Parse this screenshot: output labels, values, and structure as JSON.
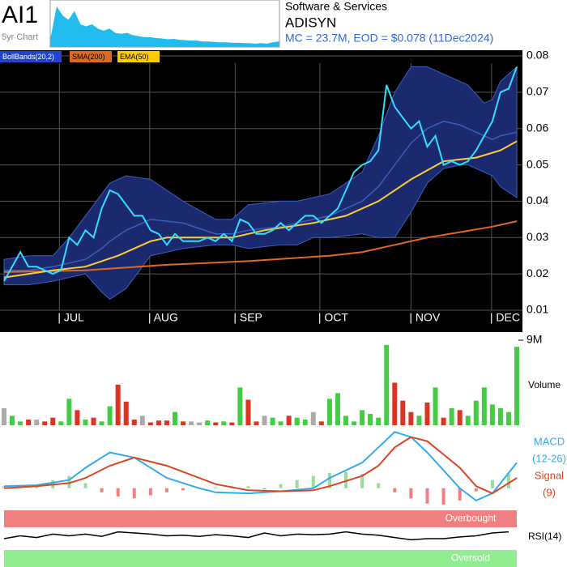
{
  "header": {
    "ticker": "AI1",
    "mini_label": "5yr Chart",
    "sector": "Software & Services",
    "company": "ADISYN",
    "summary": "MC = 23.7M, EOD = $0.078 (11Dec2024)"
  },
  "chart_data": [
    {
      "type": "line",
      "color": "#33ddff",
      "values": [
        0.018,
        0.022,
        0.026,
        0.022,
        0.022,
        0.021,
        0.02,
        0.021,
        0.03,
        0.028,
        0.032,
        0.03,
        0.038,
        0.043,
        0.042,
        0.039,
        0.036,
        0.036,
        0.032,
        0.031,
        0.028,
        0.031,
        0.029,
        0.029,
        0.029,
        0.03,
        0.029,
        0.031,
        0.029,
        0.035,
        0.034,
        0.031,
        0.031,
        0.032,
        0.034,
        0.032,
        0.034,
        0.036,
        0.036,
        0.034,
        0.036,
        0.038,
        0.043,
        0.048,
        0.05,
        0.051,
        0.054,
        0.072,
        0.066,
        0.063,
        0.06,
        0.062,
        0.055,
        0.058,
        0.05,
        0.051,
        0.05,
        0.051,
        0.054,
        0.058,
        0.062,
        0.07,
        0.071,
        0.077
      ],
      "series": [
        {
          "name": "BollBands(20,2)",
          "type": "band",
          "color": "#3a5fbf",
          "fill": "#1b2a6e",
          "legend_color": "#2244cc",
          "legend_text": "#ffffff",
          "x": [
            0,
            3,
            6,
            8,
            10,
            12,
            13,
            15,
            18,
            22,
            26,
            28,
            30,
            34,
            36,
            38,
            40,
            44,
            46,
            48,
            50,
            52,
            54,
            56,
            57,
            59,
            60,
            61,
            63
          ],
          "upper": [
            0.024,
            0.025,
            0.025,
            0.03,
            0.036,
            0.042,
            0.045,
            0.047,
            0.046,
            0.04,
            0.035,
            0.035,
            0.039,
            0.04,
            0.04,
            0.041,
            0.042,
            0.048,
            0.058,
            0.07,
            0.077,
            0.077,
            0.075,
            0.073,
            0.072,
            0.067,
            0.068,
            0.073,
            0.077
          ],
          "lower": [
            0.017,
            0.017,
            0.018,
            0.019,
            0.02,
            0.015,
            0.013,
            0.016,
            0.025,
            0.027,
            0.028,
            0.028,
            0.027,
            0.028,
            0.028,
            0.03,
            0.03,
            0.031,
            0.03,
            0.03,
            0.037,
            0.045,
            0.049,
            0.05,
            0.05,
            0.048,
            0.047,
            0.044,
            0.041
          ],
          "values": [
            0.021,
            0.021,
            0.022,
            0.023,
            0.024,
            0.027,
            0.029,
            0.032,
            0.035,
            0.034,
            0.031,
            0.031,
            0.032,
            0.033,
            0.034,
            0.035,
            0.036,
            0.04,
            0.044,
            0.05,
            0.056,
            0.06,
            0.062,
            0.061,
            0.06,
            0.058,
            0.057,
            0.058,
            0.059
          ]
        },
        {
          "name": "SMA(200)",
          "type": "line",
          "color": "#dd6a1e",
          "legend_color": "#dd6a1e",
          "legend_text": "#000000",
          "x": [
            0,
            10,
            20,
            30,
            40,
            44,
            48,
            52,
            56,
            60,
            63
          ],
          "values": [
            0.0205,
            0.021,
            0.0225,
            0.0235,
            0.025,
            0.026,
            0.028,
            0.03,
            0.0315,
            0.033,
            0.0345
          ]
        },
        {
          "name": "EMA(50)",
          "type": "line",
          "color": "#ffcc33",
          "legend_color": "#ffcc00",
          "legend_text": "#000000",
          "x": [
            0,
            6,
            10,
            14,
            18,
            20,
            24,
            28,
            32,
            38,
            42,
            46,
            50,
            54,
            58,
            61,
            63
          ],
          "values": [
            0.019,
            0.021,
            0.022,
            0.025,
            0.029,
            0.03,
            0.03,
            0.03,
            0.032,
            0.034,
            0.036,
            0.04,
            0.046,
            0.051,
            0.052,
            0.054,
            0.0565
          ]
        }
      ],
      "xlim": [
        0,
        63
      ],
      "xticks": [
        {
          "value": 6.8,
          "label": "| JUL"
        },
        {
          "value": 17.9,
          "label": "| AUG"
        },
        {
          "value": 28.4,
          "label": "| SEP"
        },
        {
          "value": 38.8,
          "label": "| OCT"
        },
        {
          "value": 50.0,
          "label": "| NOV"
        },
        {
          "value": 59.9,
          "label": "| DEC"
        }
      ],
      "ylim": [
        0.01,
        0.08
      ],
      "yticks": [
        0.01,
        0.02,
        0.03,
        0.04,
        0.05,
        0.06,
        0.07,
        0.08
      ],
      "grid": true
    },
    {
      "type": "bar",
      "ylabel": "Volume",
      "up_color": "#44cc44",
      "down_color": "#dd3322",
      "flat_color": "#aaaaaa",
      "values": [
        1.8,
        1.0,
        0.4,
        0.6,
        0.6,
        0.4,
        0.8,
        0.4,
        2.8,
        1.6,
        0.6,
        0.8,
        0.4,
        2.0,
        4.3,
        2.5,
        0.6,
        1.0,
        0.3,
        0.5,
        0.5,
        1.4,
        0.4,
        0.4,
        0.3,
        0.5,
        0.3,
        0.4,
        0.3,
        4.0,
        2.7,
        0.4,
        1.0,
        0.8,
        0.4,
        1.0,
        0.8,
        0.6,
        1.4,
        0.4,
        2.8,
        3.4,
        1.0,
        0.4,
        1.6,
        1.2,
        0.8,
        8.5,
        4.5,
        2.6,
        1.4,
        1.0,
        2.4,
        4.0,
        0.8,
        1.8,
        1.6,
        1.0,
        2.6,
        4.0,
        2.2,
        1.8,
        1.4,
        8.3
      ],
      "xlim": [
        0,
        63
      ],
      "ylim": [
        0,
        9
      ],
      "yticks": [
        {
          "value": 9,
          "label": "9M"
        }
      ]
    },
    {
      "type": "macd",
      "series": [
        {
          "name": "MACD",
          "params": "(12-26)",
          "color": "#33aaee",
          "x": [
            0,
            4,
            8,
            10,
            13,
            16,
            20,
            24,
            26,
            30,
            34,
            38,
            40,
            44,
            46,
            48,
            50,
            52,
            56,
            58,
            60,
            63
          ],
          "values": [
            0.0002,
            0.0003,
            0.0008,
            0.002,
            0.0035,
            0.003,
            0.001,
            0.0,
            -0.0004,
            -0.0005,
            -0.0003,
            0.0,
            0.001,
            0.0025,
            0.004,
            0.0055,
            0.005,
            0.0035,
            0.0,
            -0.0012,
            -0.0005,
            0.0025
          ]
        },
        {
          "name": "Signal",
          "params": "(9)",
          "color": "#dd4422",
          "x": [
            0,
            4,
            8,
            10,
            13,
            16,
            20,
            24,
            26,
            30,
            34,
            38,
            40,
            44,
            46,
            48,
            50,
            52,
            56,
            58,
            60,
            63
          ],
          "values": [
            0.0,
            0.0002,
            0.0005,
            0.001,
            0.0022,
            0.003,
            0.0022,
            0.001,
            0.0004,
            -0.0002,
            -0.0003,
            -0.0002,
            0.0002,
            0.0012,
            0.0022,
            0.004,
            0.005,
            0.0046,
            0.002,
            0.0002,
            -0.0005,
            0.001
          ]
        }
      ],
      "histogram": {
        "pos_color": "#99dd99",
        "neg_color": "#f08080",
        "x": [
          0,
          2,
          4,
          6,
          8,
          10,
          12,
          14,
          16,
          18,
          20,
          22,
          24,
          26,
          28,
          30,
          32,
          34,
          36,
          38,
          40,
          42,
          44,
          46,
          48,
          50,
          52,
          54,
          56,
          58,
          60,
          62
        ],
        "values": [
          0.0002,
          0.0001,
          0.0003,
          0.0008,
          0.0012,
          0.0005,
          -0.0004,
          -0.0008,
          -0.001,
          -0.0007,
          -0.0004,
          -0.0002,
          0.0,
          0.0001,
          0.0002,
          0.0002,
          -0.0001,
          0.0004,
          0.0008,
          0.0012,
          0.0015,
          0.0016,
          0.0014,
          0.0005,
          -0.0004,
          -0.001,
          -0.0015,
          -0.0016,
          -0.0012,
          -0.0003,
          0.0008,
          0.0014
        ]
      },
      "xlim": [
        0,
        63
      ],
      "ylim": [
        -0.002,
        0.006
      ]
    },
    {
      "type": "rsi",
      "name": "RSI(14)",
      "color": "#000000",
      "x": [
        0,
        2,
        4,
        6,
        8,
        10,
        12,
        14,
        16,
        18,
        20,
        22,
        24,
        26,
        28,
        30,
        32,
        34,
        36,
        38,
        40,
        42,
        44,
        46,
        48,
        50,
        52,
        54,
        56,
        58,
        60,
        62
      ],
      "values": [
        50,
        55,
        52,
        58,
        55,
        58,
        54,
        62,
        60,
        58,
        55,
        56,
        54,
        57,
        55,
        52,
        60,
        55,
        58,
        57,
        58,
        62,
        58,
        56,
        52,
        48,
        50,
        50,
        53,
        55,
        60,
        62
      ],
      "bands": [
        {
          "label": "Overbought",
          "from": 70,
          "to": 100,
          "color": "#f08080"
        },
        {
          "label": "Oversold",
          "from": 0,
          "to": 30,
          "color": "#90ee90"
        }
      ],
      "xlim": [
        0,
        63
      ],
      "ylim": [
        0,
        100
      ]
    },
    {
      "type": "area",
      "color": "#22bbee",
      "values": [
        0.2,
        0.9,
        0.7,
        0.6,
        0.8,
        0.5,
        0.45,
        0.5,
        0.4,
        0.35,
        0.4,
        0.3,
        0.28,
        0.3,
        0.25,
        0.22,
        0.2,
        0.2,
        0.18,
        0.17,
        0.15,
        0.16,
        0.14,
        0.13,
        0.12,
        0.12,
        0.1,
        0.1,
        0.09,
        0.08,
        0.08,
        0.07,
        0.07,
        0.06,
        0.06,
        0.05,
        0.06,
        0.05,
        0.08,
        0.1
      ],
      "ylim": [
        0,
        1
      ]
    }
  ]
}
